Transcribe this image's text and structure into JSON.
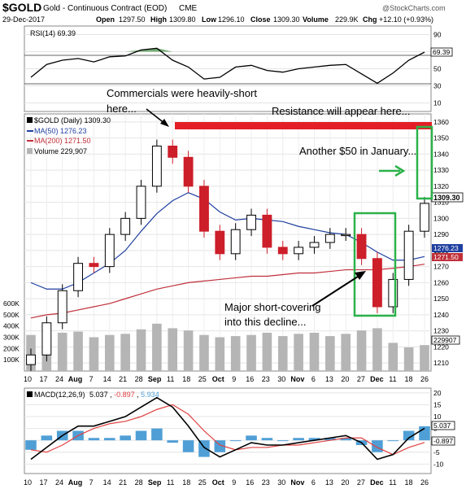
{
  "header": {
    "symbol": "$GOLD",
    "name": "Gold - Continuous Contract (EOD)",
    "exchange": "CME",
    "date": "29-Dec-2017",
    "open_label": "Open",
    "open": "1297.50",
    "high_label": "High",
    "high": "1309.80",
    "low_label": "Low",
    "low": "1296.10",
    "close_label": "Close",
    "close": "1309.30",
    "volume_label": "Volume",
    "volume": "229.9K",
    "chg_label": "Chg",
    "chg": "+12.10 (+0.93%)",
    "watermark": "@StockCharts.com"
  },
  "rsi": {
    "label": "RSI(14) 69.39",
    "value_tag": "69.39",
    "levels": [
      70,
      30
    ],
    "ticks": [
      "90",
      "70",
      "50",
      "30",
      "10"
    ]
  },
  "price_panel": {
    "legend": [
      "$GOLD (Daily) 1309.30",
      "MA(50) 1276.23",
      "MA(200) 1271.50",
      "Volume 229,907"
    ],
    "ticks": [
      "1360",
      "1350",
      "1340",
      "1330",
      "1320",
      "1310",
      "1300",
      "1290",
      "1280",
      "1270",
      "1260",
      "1250",
      "1240",
      "1230",
      "1220",
      "1210"
    ],
    "close_tag": "1309.30",
    "ma50_tag": "1276.23",
    "ma200_tag": "1271.50",
    "volume_tag": "229907",
    "volume_ticks": [
      "600K",
      "500K",
      "400K",
      "300K",
      "200K",
      "100K"
    ]
  },
  "annotations": {
    "commercials_1": "Commercials were heavily-short",
    "commercials_2": "here...",
    "resistance": "Resistance will appear here...",
    "another": "Another $50 in January...",
    "short_cover_1": "Major short-covering",
    "short_cover_2": "into this decline..."
  },
  "macd": {
    "label_prefix": "MACD(12,26,9)",
    "v1": "5.037",
    "v2": "-0.897",
    "v3": "5.934",
    "tag1": "5.037",
    "tag2": "-0.897",
    "ticks": [
      "20",
      "15",
      "10",
      "5",
      "0",
      "-5",
      "-10"
    ]
  },
  "x_axis_labels": [
    "10",
    "17",
    "24",
    "Aug",
    "7",
    "14",
    "21",
    "28",
    "Sep",
    "11",
    "18",
    "25",
    "Oct",
    "9",
    "16",
    "23",
    "30",
    "Nov",
    "6",
    "13",
    "20",
    "27",
    "Dec",
    "11",
    "18",
    "26"
  ],
  "colors": {
    "up": "#000000",
    "down": "#cc1f2a",
    "ma50": "#1f3fa0",
    "ma200": "#c0303a",
    "volume": "#b5b5b5",
    "macd_hist": "#4f9fd6",
    "resistance_bar": "#e41e26",
    "green_box": "#2bb24a"
  },
  "chart_data": {
    "type": "candlestick",
    "title": "$GOLD Gold - Continuous Contract (EOD) CME",
    "ylim": [
      1205,
      1365
    ],
    "x": [
      "Jul 10",
      "Jul 17",
      "Jul 24",
      "Aug 1",
      "Aug 7",
      "Aug 14",
      "Aug 21",
      "Aug 28",
      "Sep 1",
      "Sep 11",
      "Sep 18",
      "Sep 25",
      "Oct 2",
      "Oct 9",
      "Oct 16",
      "Oct 23",
      "Oct 30",
      "Nov 6",
      "Nov 13",
      "Nov 20",
      "Nov 27",
      "Dec 1",
      "Dec 11",
      "Dec 18",
      "Dec 26",
      "Dec 29"
    ],
    "series": [
      {
        "name": "$GOLD (Daily)",
        "values": [
          1215,
          1235,
          1255,
          1272,
          1270,
          1290,
          1300,
          1320,
          1345,
          1338,
          1320,
          1292,
          1278,
          1293,
          1302,
          1282,
          1278,
          1282,
          1285,
          1290,
          1290,
          1275,
          1245,
          1262,
          1292,
          1309.3
        ]
      },
      {
        "name": "MA(50)",
        "values": [
          1260,
          1256,
          1256,
          1260,
          1266,
          1272,
          1280,
          1292,
          1303,
          1311,
          1316,
          1312,
          1304,
          1299,
          1300,
          1299,
          1298,
          1295,
          1293,
          1291,
          1290,
          1285,
          1279,
          1274,
          1274,
          1276.23
        ]
      },
      {
        "name": "MA(200)",
        "values": [
          1238,
          1240,
          1241,
          1243,
          1245,
          1247,
          1250,
          1253,
          1256,
          1258,
          1260,
          1261,
          1262,
          1263,
          1264,
          1264,
          1265,
          1266,
          1266,
          1267,
          1268,
          1268,
          1268,
          1269,
          1270,
          1271.5
        ]
      },
      {
        "name": "RSI(14)",
        "values": [
          40,
          55,
          60,
          62,
          58,
          64,
          65,
          72,
          74,
          60,
          52,
          38,
          40,
          52,
          54,
          48,
          46,
          50,
          52,
          54,
          55,
          44,
          33,
          45,
          60,
          69.39
        ]
      },
      {
        "name": "Volume",
        "values": [
          320,
          330,
          340,
          350,
          300,
          320,
          330,
          370,
          420,
          380,
          360,
          320,
          300,
          310,
          320,
          340,
          310,
          330,
          340,
          310,
          330,
          360,
          380,
          250,
          210,
          229.907
        ]
      },
      {
        "name": "MACD",
        "values": [
          -8,
          -3,
          2,
          6,
          6,
          8,
          10,
          14,
          18,
          14,
          6,
          -3,
          -7,
          -4,
          -1,
          -2,
          -2,
          -1,
          0,
          1,
          2,
          -1,
          -8,
          -6,
          1,
          5.037
        ]
      },
      {
        "name": "Signal",
        "values": [
          -4,
          -5,
          -2,
          2,
          5,
          7,
          8,
          10,
          13,
          15,
          11,
          4,
          -2,
          -4,
          -3,
          -3,
          -2,
          -2,
          -1,
          0,
          1,
          1,
          -3,
          -6,
          -3,
          -0.897
        ]
      }
    ]
  }
}
